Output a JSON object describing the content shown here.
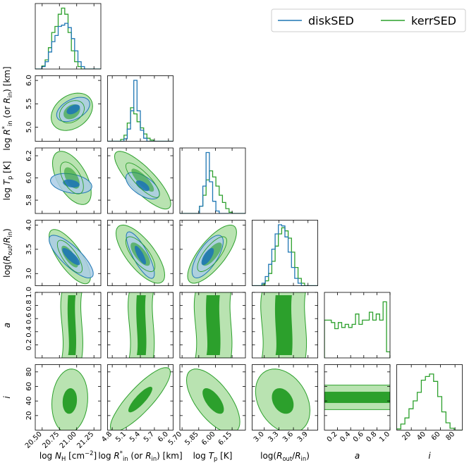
{
  "colors": {
    "disk": "#1f77b4",
    "disk_fill": "#aacde6",
    "kerr": "#2ca02c",
    "kerr_fill": "#b9e3b1"
  },
  "chart_data": {
    "type": "corner",
    "legend": {
      "placement": "top-right",
      "entries": [
        "diskSED",
        "kerrSED"
      ]
    },
    "parameters": [
      {
        "key": "nh",
        "range": [
          20.4,
          21.35
        ],
        "ticks": [
          "20.50",
          "20.75",
          "21.00",
          "21.25"
        ],
        "tick_values": [
          20.5,
          20.75,
          21.0,
          21.25
        ],
        "xlabel": "log N_H [cm^-2]",
        "ylabel": ""
      },
      {
        "key": "rin",
        "range": [
          4.7,
          6.1
        ],
        "ticks": [
          "4.8",
          "5.1",
          "5.4",
          "5.7",
          "6.0"
        ],
        "tick_values": [
          4.8,
          5.1,
          5.4,
          5.7,
          6.0
        ],
        "ytick_values": [
          5.0,
          5.5,
          6.0
        ],
        "yticks": [
          "5.0",
          "5.5",
          "6.0"
        ],
        "xlabel": "log R*_in (or R_in) [km]",
        "ylabel": "log R*_in (or R_in) [km]"
      },
      {
        "key": "tp",
        "range": [
          5.68,
          6.27
        ],
        "ticks": [
          "5.70",
          "5.85",
          "6.00",
          "6.15"
        ],
        "tick_values": [
          5.7,
          5.85,
          6.0,
          6.15
        ],
        "ytick_values": [
          5.8,
          6.0,
          6.2
        ],
        "yticks": [
          "5.8",
          "6.0",
          "6.2"
        ],
        "xlabel": "log T_p [K]",
        "ylabel": "log T_p [K]"
      },
      {
        "key": "rout",
        "range": [
          2.75,
          4.1
        ],
        "ticks": [
          "3.0",
          "3.3",
          "3.6",
          "3.9"
        ],
        "tick_values": [
          3.0,
          3.3,
          3.6,
          3.9
        ],
        "ytick_values": [
          3.0,
          3.5,
          4.0
        ],
        "yticks": [
          "3.0",
          "3.5",
          "4.0"
        ],
        "xlabel": "log(R_out/R_in)",
        "ylabel": "log(R_out/R_in)"
      },
      {
        "key": "a",
        "range": [
          0.0,
          1.0
        ],
        "ticks": [
          "0.2",
          "0.4",
          "0.6",
          "0.8",
          "1.0"
        ],
        "tick_values": [
          0.2,
          0.4,
          0.6,
          0.8,
          1.0
        ],
        "xlabel": "a",
        "ylabel": "a"
      },
      {
        "key": "i",
        "range": [
          0,
          90
        ],
        "ticks": [
          "20",
          "40",
          "60",
          "80"
        ],
        "tick_values": [
          20,
          40,
          60,
          80
        ],
        "xlabel": "i",
        "ylabel": "i"
      }
    ],
    "series": [
      {
        "name": "diskSED",
        "params": [
          "nh",
          "rin",
          "tp",
          "rout"
        ]
      },
      {
        "name": "kerrSED",
        "params": [
          "nh",
          "rin",
          "tp",
          "rout",
          "a",
          "i"
        ]
      }
    ],
    "marginals": {
      "nh": {
        "kerr": [
          0,
          0,
          0.05,
          0.15,
          0.35,
          0.6,
          0.7,
          0.9,
          1.0,
          0.9,
          0.6,
          0.3,
          0.12,
          0.04,
          0,
          0,
          0,
          0,
          0,
          0
        ],
        "disk": [
          0,
          0,
          0.04,
          0.12,
          0.28,
          0.45,
          0.55,
          0.7,
          0.72,
          0.75,
          0.68,
          0.5,
          0.3,
          0.12,
          0.04,
          0,
          0,
          0,
          0,
          0
        ]
      },
      "rin": {
        "kerr": [
          0,
          0,
          0,
          0,
          0.03,
          0.1,
          0.3,
          0.55,
          0.45,
          0.32,
          0.22,
          0.12,
          0.05,
          0.02,
          0,
          0,
          0,
          0,
          0,
          0
        ],
        "disk": [
          0,
          0,
          0,
          0,
          0,
          0.04,
          0.2,
          0.5,
          1.0,
          0.5,
          0.18,
          0.05,
          0,
          0,
          0,
          0,
          0,
          0,
          0,
          0
        ]
      },
      "tp": {
        "kerr": [
          0,
          0,
          0,
          0,
          0,
          0,
          0.12,
          0.3,
          0.55,
          0.7,
          0.6,
          0.45,
          0.3,
          0.18,
          0.08,
          0.02,
          0,
          0,
          0,
          0
        ],
        "disk": [
          0,
          0,
          0,
          0,
          0,
          0,
          0.12,
          0.45,
          1.0,
          0.52,
          0.2,
          0.04,
          0,
          0,
          0,
          0,
          0,
          0,
          0,
          0
        ]
      },
      "rout": {
        "kerr": [
          0,
          0,
          0,
          0.02,
          0.08,
          0.2,
          0.4,
          0.65,
          0.85,
          0.95,
          0.9,
          0.78,
          0.55,
          0.3,
          0.12,
          0.04,
          0,
          0,
          0,
          0
        ],
        "disk": [
          0,
          0,
          0,
          0.04,
          0.15,
          0.35,
          0.6,
          0.85,
          1.0,
          0.98,
          0.8,
          0.55,
          0.3,
          0.12,
          0.04,
          0,
          0,
          0,
          0,
          0
        ]
      },
      "a": {
        "kerr": [
          0.62,
          0.62,
          0.58,
          0.48,
          0.58,
          0.5,
          0.55,
          0.5,
          0.55,
          0.72,
          0.55,
          0.62,
          0.62,
          0.75,
          0.62,
          0.72,
          0.62,
          0.92,
          0.1
        ]
      },
      "i": {
        "kerr": [
          0.02,
          0.1,
          0.2,
          0.35,
          0.48,
          0.62,
          0.82,
          0.88,
          0.92,
          0.8,
          0.55,
          0.3,
          0.12,
          0.03,
          0,
          0
        ]
      }
    },
    "pairs": [
      {
        "x": "nh",
        "y": "rin",
        "kerr": {
          "c": [
            20.93,
            5.33
          ],
          "sx": 0.15,
          "sy": 0.2,
          "rho": 0.3,
          "fill_outer": true
        },
        "disk": {
          "c": [
            20.95,
            5.38
          ],
          "sx": 0.12,
          "sy": 0.13,
          "rho": 0.45
        }
      },
      {
        "x": "nh",
        "y": "tp",
        "kerr": {
          "c": [
            20.93,
            6.0
          ],
          "sx": 0.14,
          "sy": 0.12,
          "rho": -0.55
        },
        "disk": {
          "c": [
            20.92,
            5.95
          ],
          "sx": 0.15,
          "sy": 0.045,
          "rho": -0.3
        }
      },
      {
        "x": "nh",
        "y": "rout",
        "kerr": {
          "c": [
            20.9,
            3.35
          ],
          "sx": 0.15,
          "sy": 0.28,
          "rho": -0.75
        },
        "disk": {
          "c": [
            20.92,
            3.35
          ],
          "sx": 0.16,
          "sy": 0.22,
          "rho": -0.8
        }
      },
      {
        "x": "nh",
        "y": "a",
        "kerr": {
          "c": [
            20.93,
            0.5
          ],
          "sx": 0.09,
          "sy": 0.42,
          "rho": 0.0,
          "band": true
        }
      },
      {
        "x": "nh",
        "y": "i",
        "kerr": {
          "c": [
            20.9,
            40
          ],
          "sx": 0.13,
          "sy": 22,
          "rho": 0.1
        }
      },
      {
        "x": "rin",
        "y": "tp",
        "kerr": {
          "c": [
            5.45,
            5.98
          ],
          "sx": 0.3,
          "sy": 0.13,
          "rho": -0.82
        },
        "disk": {
          "c": [
            5.45,
            5.93
          ],
          "sx": 0.18,
          "sy": 0.06,
          "rho": -0.6
        }
      },
      {
        "x": "rin",
        "y": "rout",
        "kerr": {
          "c": [
            5.4,
            3.4
          ],
          "sx": 0.26,
          "sy": 0.3,
          "rho": -0.72
        },
        "disk": {
          "c": [
            5.4,
            3.38
          ],
          "sx": 0.15,
          "sy": 0.24,
          "rho": -0.8
        }
      },
      {
        "x": "rin",
        "y": "a",
        "kerr": {
          "c": [
            5.42,
            0.5
          ],
          "sx": 0.16,
          "sy": 0.42,
          "rho": 0.0,
          "band": true
        }
      },
      {
        "x": "rin",
        "y": "i",
        "kerr": {
          "c": [
            5.4,
            42
          ],
          "sx": 0.32,
          "sy": 22,
          "rho": 0.85
        }
      },
      {
        "x": "tp",
        "y": "rout",
        "kerr": {
          "c": [
            5.97,
            3.4
          ],
          "sx": 0.11,
          "sy": 0.3,
          "rho": 0.75
        },
        "disk": {
          "c": [
            5.93,
            3.35
          ],
          "sx": 0.07,
          "sy": 0.22,
          "rho": 0.7
        }
      },
      {
        "x": "tp",
        "y": "a",
        "kerr": {
          "c": [
            5.98,
            0.5
          ],
          "sx": 0.1,
          "sy": 0.42,
          "rho": 0.0,
          "band": true
        }
      },
      {
        "x": "tp",
        "y": "i",
        "kerr": {
          "c": [
            5.98,
            40
          ],
          "sx": 0.12,
          "sy": 22,
          "rho": -0.65
        }
      },
      {
        "x": "rout",
        "y": "a",
        "kerr": {
          "c": [
            3.4,
            0.5
          ],
          "sx": 0.28,
          "sy": 0.42,
          "rho": 0.0,
          "band": true
        }
      },
      {
        "x": "rout",
        "y": "i",
        "kerr": {
          "c": [
            3.38,
            40
          ],
          "sx": 0.28,
          "sy": 22,
          "rho": -0.3
        }
      },
      {
        "x": "a",
        "y": "i",
        "kerr": {
          "c": [
            0.5,
            45
          ],
          "sx": 0.6,
          "sy": 14,
          "rho": 0.0,
          "wide": true
        }
      }
    ]
  }
}
